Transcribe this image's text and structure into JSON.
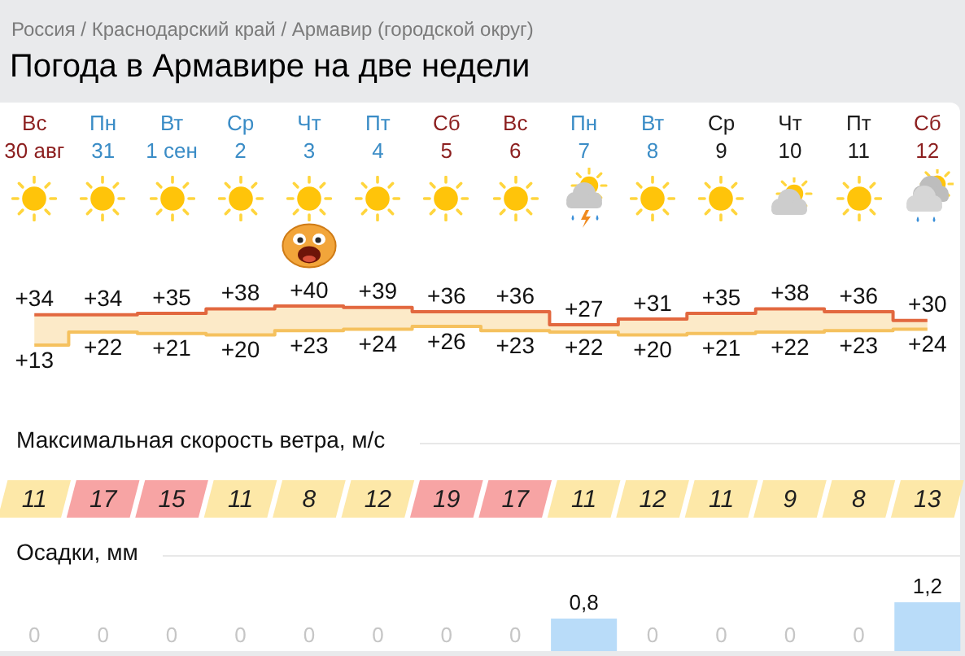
{
  "chart_data": [
    {
      "type": "step",
      "title": "Погода в Армавире на две недели",
      "subtitle": "Россия / Краснодарский край / Армавир (городской округ)",
      "categories": [
        "Вс\n30 авг",
        "Пн\n31",
        "Вт\n1 сен",
        "Ср\n2",
        "Чт\n3",
        "Пт\n4",
        "Сб\n5",
        "Вс\n6",
        "Пн\n7",
        "Вт\n8",
        "Ср\n9",
        "Чт\n10",
        "Пт\n11",
        "Сб\n12"
      ],
      "tick_labels": "x",
      "series": [
        {
          "color": "#e2683f",
          "values": [
            34,
            34,
            35,
            38,
            40,
            39,
            36,
            36,
            27,
            31,
            35,
            38,
            36,
            30
          ],
          "value_labels": [
            "+34",
            "+34",
            "+35",
            "+38",
            "+40",
            "+39",
            "+36",
            "+36",
            "+27",
            "+31",
            "+35",
            "+38",
            "+36",
            "+30"
          ]
        },
        {
          "color": "#f5c15e",
          "values": [
            13,
            22,
            21,
            20,
            23,
            24,
            26,
            23,
            22,
            20,
            21,
            22,
            23,
            24
          ],
          "value_labels": [
            "+13",
            "+22",
            "+21",
            "+20",
            "+23",
            "+24",
            "+26",
            "+23",
            "+22",
            "+20",
            "+21",
            "+22",
            "+23",
            "+24"
          ],
          "lower": [
            13,
            22,
            21,
            20,
            23,
            24,
            26,
            23,
            22,
            20,
            21,
            22,
            23,
            24
          ],
          "upper": [
            34,
            34,
            35,
            38,
            40,
            39,
            36,
            36,
            27,
            31,
            35,
            38,
            36,
            30
          ]
        }
      ]
    },
    {
      "type": "heatmap",
      "title": "Максимальная скорость ветра, м/с",
      "categories": [
        null,
        null,
        null,
        null,
        null,
        null,
        null,
        null,
        null,
        null,
        null,
        null,
        null,
        null
      ],
      "y_categories": [
        null
      ],
      "tick_labels": false,
      "data_labels": true,
      "cells": [
        [
          11,
          17,
          15,
          11,
          8,
          12,
          19,
          17,
          11,
          12,
          11,
          9,
          8,
          13
        ]
      ],
      "colors": [
        "#fde8a8",
        "#f7a4a4",
        "#f7a4a4",
        "#fde8a8",
        "#fde8a8",
        "#fde8a8",
        "#f7a4a4",
        "#f7a4a4",
        "#fde8a8",
        "#fde8a8",
        "#fde8a8",
        "#fde8a8",
        "#fde8a8",
        "#fde8a8"
      ]
    },
    {
      "type": "bar",
      "title": "Осадки, мм",
      "categories": [
        null,
        null,
        null,
        null,
        null,
        null,
        null,
        null,
        null,
        null,
        null,
        null,
        null,
        null
      ],
      "tick_labels": false,
      "color": "#b9dcf9",
      "values": [
        0,
        0,
        0,
        0,
        0,
        0,
        0,
        0,
        0.8,
        0,
        0,
        0,
        0,
        1.2
      ],
      "value_labels": [
        "0",
        "0",
        "0",
        "0",
        "0",
        "0",
        "0",
        "0",
        "0,8",
        "0",
        "0",
        "0",
        "0",
        "1,2"
      ]
    }
  ]
}
